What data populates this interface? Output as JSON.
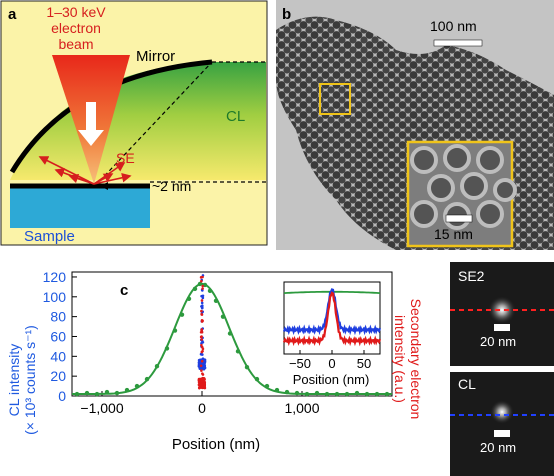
{
  "panel_a": {
    "letter": "a",
    "beam_label_1": "1–30 keV",
    "beam_label_2": "electron",
    "beam_label_3": "beam",
    "mirror_label": "Mirror",
    "cl_label": "CL",
    "se_label": "SE",
    "depth_label": "~2 nm",
    "sample_label": "Sample",
    "colors": {
      "beam": "#e33d1c",
      "green": "#2e9e3c",
      "yellow": "#f6e96a",
      "sample": "#2da9d6",
      "text_blue": "#1b4fd8",
      "text_red": "#d61e1e"
    }
  },
  "panel_b": {
    "letter": "b",
    "scale_main": "100 nm",
    "scale_inset": "15 nm",
    "colors": {
      "highlight": "#f0c419"
    }
  },
  "panel_c": {
    "letter": "c",
    "ylabel_left_1": "CL intensity",
    "ylabel_left_2": "(× 10³ counts s⁻¹)",
    "ylabel_right_1": "Secondary electron",
    "ylabel_right_2": "intensity (a.u.)",
    "xlabel": "Position (nm)",
    "inset_xlabel": "Position (nm)",
    "colors": {
      "cl": "#2d9a3e",
      "blue": "#1f3fe0",
      "red": "#e01a1a",
      "left_axis": "#1f5ae0",
      "right_axis": "#e01a1a"
    }
  },
  "chart_data": {
    "type": "scatter",
    "xlabel": "Position (nm)",
    "ylabel": "CL intensity (× 10³ counts s⁻¹)",
    "y2label": "Secondary electron intensity (a.u.)",
    "xlim": [
      -1300,
      1900
    ],
    "ylim": [
      0,
      125
    ],
    "xticks": [
      "−1,000",
      "0",
      "1,000"
    ],
    "yticks": [
      "0",
      "20",
      "40",
      "60",
      "80",
      "100",
      "120"
    ],
    "x_ticks_values": [
      -1000,
      0,
      1000
    ],
    "y_ticks_values": [
      0,
      20,
      40,
      60,
      80,
      100,
      120
    ],
    "series": [
      {
        "values": [
          [
            -1250,
            2
          ],
          [
            -1150,
            3
          ],
          [
            -1050,
            2
          ],
          [
            -950,
            4
          ],
          [
            -850,
            3
          ],
          [
            -750,
            6
          ],
          [
            -650,
            10
          ],
          [
            -550,
            17
          ],
          [
            -450,
            30
          ],
          [
            -350,
            48
          ],
          [
            -270,
            66
          ],
          [
            -200,
            82
          ],
          [
            -130,
            98
          ],
          [
            -70,
            108
          ],
          [
            -20,
            113
          ],
          [
            30,
            112
          ],
          [
            80,
            106
          ],
          [
            140,
            96
          ],
          [
            210,
            80
          ],
          [
            280,
            63
          ],
          [
            360,
            45
          ],
          [
            450,
            29
          ],
          [
            550,
            17
          ],
          [
            650,
            10
          ],
          [
            750,
            6
          ],
          [
            850,
            4
          ],
          [
            950,
            3
          ],
          [
            1050,
            2
          ],
          [
            1150,
            3
          ],
          [
            1250,
            2
          ],
          [
            1350,
            2
          ],
          [
            1450,
            2
          ],
          [
            1550,
            3
          ],
          [
            1650,
            2
          ],
          [
            1750,
            2
          ],
          [
            1850,
            2
          ]
        ],
        "fit": {
          "amplitude": 111,
          "center": 0,
          "sigma": 270,
          "offset": 2
        }
      },
      {
        "values": {
          "center": 0,
          "baseline": 32,
          "peak": 122
        }
      },
      {
        "values": {
          "center": 0,
          "baseline": 13,
          "peak": 120
        }
      }
    ],
    "inset": {
      "xlim": [
        -75,
        75
      ],
      "xticks": [
        "−50",
        "0",
        "50"
      ],
      "x_ticks_values": [
        -50,
        0,
        50
      ]
    }
  },
  "panel_d": {
    "se2_label": "SE2",
    "cl_label": "CL",
    "scale_1": "20 nm",
    "scale_2": "20 nm",
    "colors": {
      "red_line": "#ff2020",
      "blue_line": "#2040ff"
    }
  }
}
